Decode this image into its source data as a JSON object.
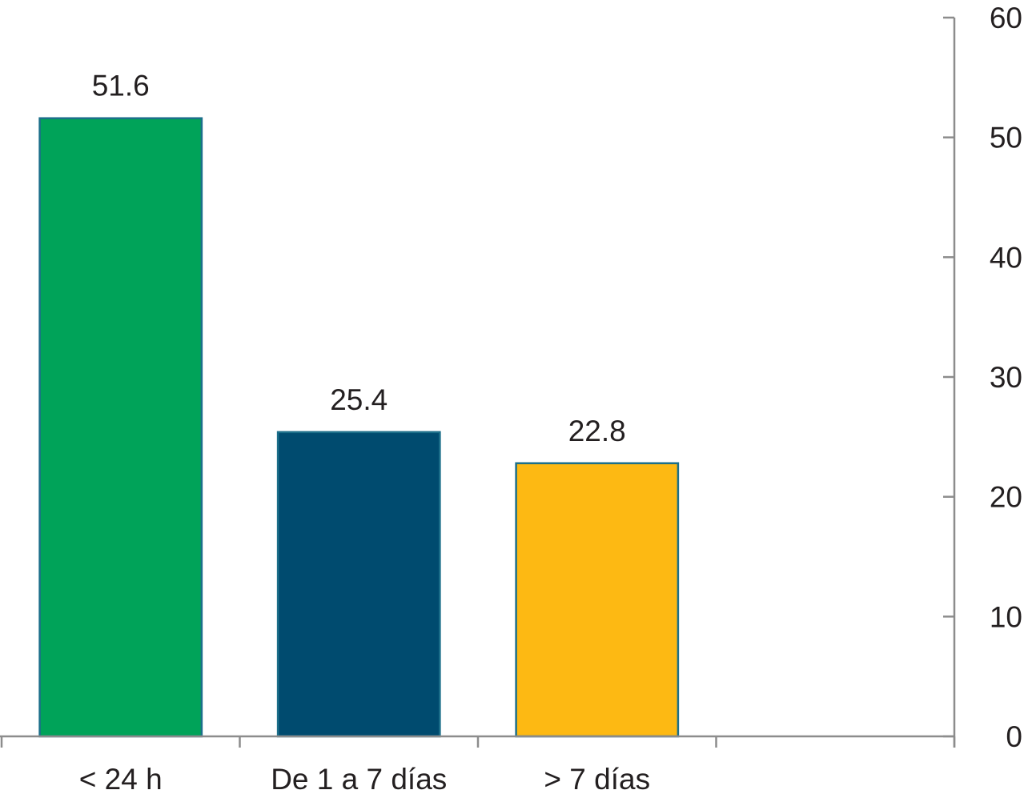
{
  "chart_data": {
    "type": "bar",
    "categories": [
      "< 24 h",
      "De 1 a 7 días",
      "> 7 días"
    ],
    "values": [
      51.6,
      25.4,
      22.8
    ],
    "data_labels": [
      "51.6",
      "25.4",
      "22.8"
    ],
    "title": "",
    "xlabel": "",
    "ylabel": "",
    "ylim": [
      0,
      60
    ],
    "yticks": [
      0,
      10,
      20,
      30,
      40,
      50,
      60
    ],
    "ytick_labels": [
      "0",
      "10",
      "20",
      "30",
      "40",
      "50",
      "60"
    ],
    "y_axis_side": "right",
    "grid": false,
    "legend": "none",
    "empty_slots_after": 1,
    "colors": {
      "bars": [
        "#00a359",
        "#004b6f",
        "#fdb913"
      ],
      "bar_stroke": "#1c6f8a",
      "axis": "#8c8c8c",
      "text": "#231f20"
    }
  }
}
